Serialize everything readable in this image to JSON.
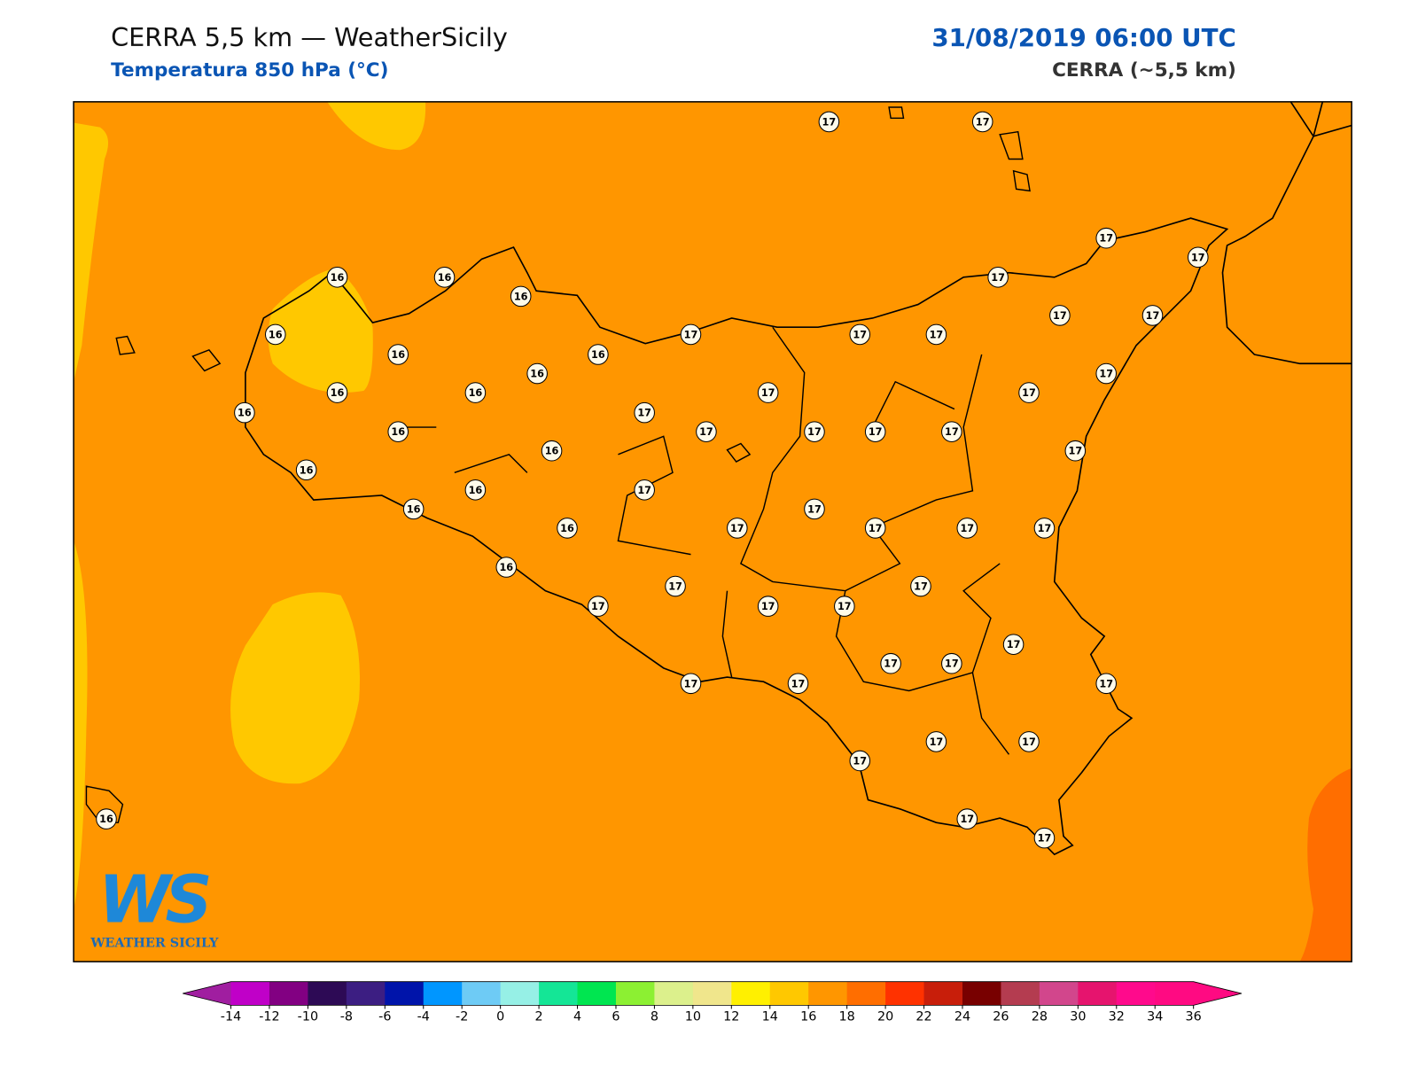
{
  "header": {
    "title": "CERRA 5,5 km — WeatherSicily",
    "subtitle": "Temperatura 850 hPa (°C)",
    "datetime": "31/08/2019 06:00 UTC",
    "model": "CERRA (~5,5 km)"
  },
  "stations": [
    17,
    17,
    17,
    17,
    16,
    16,
    16,
    17,
    16,
    17,
    17,
    17,
    17,
    17,
    16,
    16,
    16,
    17,
    16,
    16,
    17,
    17,
    16,
    17,
    16,
    17,
    17,
    17,
    17,
    16,
    17,
    16,
    16,
    17,
    17,
    16,
    16,
    17,
    17,
    17,
    17,
    17,
    16,
    17,
    17,
    17,
    17,
    17,
    17,
    17,
    17,
    17,
    17,
    17,
    17,
    17,
    17,
    17,
    16
  ],
  "logo": {
    "mark": "WS",
    "text": "WEATHER SICILY"
  },
  "colorbar": {
    "ticks": [
      -14,
      -12,
      -10,
      -8,
      -6,
      -4,
      -2,
      0,
      2,
      4,
      6,
      8,
      10,
      12,
      14,
      16,
      18,
      20,
      22,
      24,
      26,
      28,
      30,
      32,
      34,
      36
    ],
    "colors": [
      "#c000c8",
      "#820082",
      "#2d0a55",
      "#3c1e82",
      "#0014aa",
      "#0096ff",
      "#6ecbf5",
      "#96f0e6",
      "#14e696",
      "#00e650",
      "#8cf032",
      "#dcf08c",
      "#f0e68c",
      "#fff000",
      "#ffc800",
      "#ff9600",
      "#ff6e00",
      "#ff3200",
      "#c81e0a",
      "#780000",
      "#b43c50",
      "#d2468c",
      "#e6146e",
      "#ff0a8c",
      "#ff0a82"
    ],
    "under": "#a01ea0",
    "over": "#ff0a82"
  }
}
